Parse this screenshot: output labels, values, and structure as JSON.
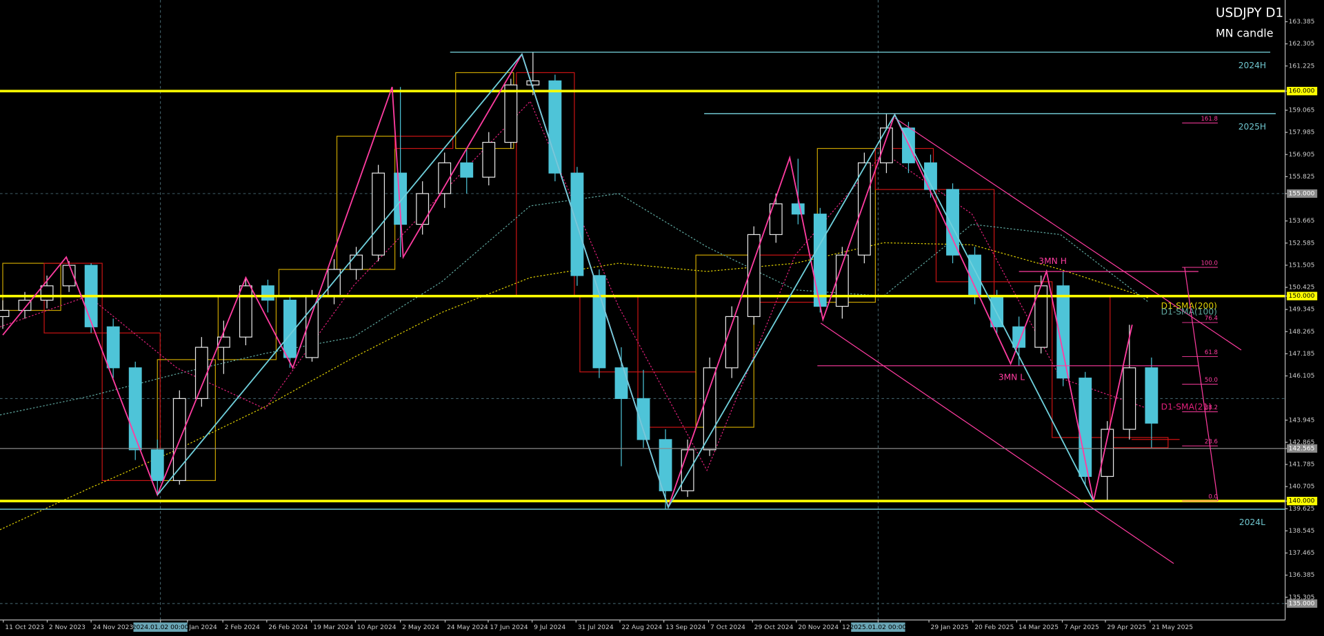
{
  "chart_data": {
    "type": "candlestick",
    "title": "USDJPY D1",
    "subtitle": "MN candle",
    "xlim": [
      0,
      465.4
    ],
    "ylim": [
      134.198,
      164.444
    ],
    "xticks": [
      {
        "value": 1.2,
        "label": "11 Oct 2023"
      },
      {
        "value": 17.1,
        "label": "2 Nov 2023"
      },
      {
        "value": 33,
        "label": "24 Nov 2023"
      },
      {
        "value": 58.1,
        "label": "2024.01.02 00:00",
        "highlight": true
      },
      {
        "value": 67.9,
        "label": "Jan 2024"
      },
      {
        "value": 80.7,
        "label": "2 Feb 2024"
      },
      {
        "value": 96.6,
        "label": "26 Feb 2024"
      },
      {
        "value": 112.8,
        "label": "19 Mar 2024"
      },
      {
        "value": 128.7,
        "label": "10 Apr 2024"
      },
      {
        "value": 145,
        "label": "2 May 2024"
      },
      {
        "value": 161.2,
        "label": "24 May 2024"
      },
      {
        "value": 176.8,
        "label": "17 Jun 2024"
      },
      {
        "value": 192.7,
        "label": "9 Jul 2024"
      },
      {
        "value": 208.6,
        "label": "31 Jul 2024"
      },
      {
        "value": 224.5,
        "label": "22 Aug 2024"
      },
      {
        "value": 240.4,
        "label": "13 Sep 2024"
      },
      {
        "value": 256.6,
        "label": "7 Oct 2024"
      },
      {
        "value": 272.5,
        "label": "29 Oct 2024"
      },
      {
        "value": 288.4,
        "label": "20 Nov 2024"
      },
      {
        "value": 304.3,
        "label": "12"
      },
      {
        "value": 318,
        "label": "2025.01.02 00:00",
        "highlight": true
      },
      {
        "value": 336.4,
        "label": "29 Jan 2025"
      },
      {
        "value": 352.3,
        "label": "20 Feb 2025"
      },
      {
        "value": 368.2,
        "label": "14 Mar 2025"
      },
      {
        "value": 384.7,
        "label": "7 Apr 2025"
      },
      {
        "value": 400.3,
        "label": "29 Apr 2025"
      },
      {
        "value": 416.5,
        "label": "21 May 2025"
      }
    ],
    "yticks": [
      163.385,
      162.305,
      161.225,
      {
        "value": 160,
        "label": "160.000",
        "highlight": "yellow"
      },
      159.065,
      157.985,
      156.905,
      155.825,
      {
        "value": 155,
        "label": "155.000",
        "highlight": "gray"
      },
      153.665,
      152.585,
      151.505,
      150.425,
      {
        "value": 150,
        "label": "150.000",
        "highlight": "yellow"
      },
      149.345,
      148.265,
      147.185,
      146.105,
      143.945,
      142.865,
      {
        "value": 142.565,
        "label": "142.565",
        "highlight": "gray"
      },
      141.785,
      140.705,
      {
        "value": 140,
        "label": "140.000",
        "highlight": "yellow"
      },
      139.625,
      138.545,
      137.465,
      136.385,
      135.305,
      {
        "value": 135,
        "label": "135.000",
        "highlight": "gray"
      }
    ],
    "grid_levels": [
      155,
      145,
      135
    ],
    "up_color": "#e8e8e8",
    "down_color": "#4ec4d8",
    "candles": {
      "x": [
        1,
        9,
        17,
        25,
        33,
        41,
        49,
        57,
        65,
        73,
        81,
        89,
        97,
        105,
        113,
        121,
        129,
        137,
        145,
        153,
        161,
        169,
        177,
        185,
        193,
        201,
        209,
        217,
        225,
        233,
        241,
        249,
        257,
        265,
        273,
        281,
        289,
        297,
        305,
        313,
        321,
        329,
        337,
        345,
        353,
        361,
        369,
        377,
        385,
        393,
        401,
        409,
        417
      ],
      "open": [
        149.0,
        149.3,
        149.8,
        150.5,
        151.5,
        148.5,
        146.5,
        142.5,
        141.0,
        145.0,
        147.5,
        148.0,
        150.5,
        149.8,
        147.0,
        150.0,
        151.3,
        152.0,
        156.0,
        153.5,
        155.0,
        156.5,
        155.8,
        157.5,
        160.3,
        160.5,
        156.0,
        151.0,
        146.5,
        145.0,
        143.0,
        140.5,
        142.5,
        146.5,
        149.0,
        153.0,
        154.5,
        154.0,
        149.5,
        152.0,
        156.5,
        158.2,
        156.5,
        155.2,
        152.0,
        150.0,
        148.5,
        147.5,
        150.5,
        146.0,
        141.2,
        143.5,
        146.5
      ],
      "high": [
        149.8,
        150.2,
        151.0,
        151.7,
        151.6,
        148.9,
        146.8,
        143.0,
        145.4,
        148.0,
        148.8,
        150.9,
        150.8,
        150.0,
        150.3,
        151.8,
        152.4,
        156.4,
        160.2,
        155.6,
        157.0,
        157.2,
        158.0,
        160.6,
        161.9,
        160.8,
        156.3,
        151.3,
        147.5,
        146.4,
        143.5,
        143.0,
        147.0,
        149.5,
        153.4,
        155.0,
        156.7,
        154.3,
        152.4,
        157.0,
        158.9,
        158.5,
        156.9,
        155.5,
        152.4,
        150.3,
        149.0,
        151.0,
        151.2,
        146.3,
        143.9,
        148.6,
        147.0
      ],
      "low": [
        148.4,
        148.9,
        149.4,
        150.2,
        148.2,
        146.0,
        142.0,
        140.4,
        140.8,
        144.6,
        146.2,
        147.6,
        149.2,
        146.5,
        146.8,
        149.6,
        150.8,
        151.7,
        151.9,
        153.0,
        154.3,
        155.0,
        155.4,
        157.2,
        159.8,
        155.6,
        150.5,
        146.0,
        141.7,
        142.6,
        139.6,
        140.2,
        142.2,
        146.0,
        148.6,
        152.6,
        153.5,
        149.2,
        148.9,
        151.6,
        156.0,
        156.0,
        154.8,
        151.6,
        149.6,
        148.1,
        146.6,
        147.2,
        145.6,
        140.8,
        140.0,
        143.0,
        142.6
      ],
      "close": [
        149.3,
        149.8,
        150.5,
        151.5,
        148.5,
        146.5,
        142.5,
        141.0,
        145.0,
        147.5,
        148.0,
        150.5,
        149.8,
        147.0,
        150.0,
        151.3,
        152.0,
        156.0,
        153.5,
        155.0,
        156.5,
        155.8,
        157.5,
        160.3,
        160.5,
        156.0,
        151.0,
        146.5,
        145.0,
        143.0,
        140.5,
        142.5,
        146.5,
        149.0,
        153.0,
        154.5,
        154.0,
        149.5,
        152.0,
        156.5,
        158.2,
        156.5,
        155.2,
        152.0,
        150.0,
        148.5,
        147.5,
        150.5,
        146.0,
        141.2,
        143.5,
        146.5,
        143.8
      ]
    },
    "monthly": {
      "up_color": "#c8a200",
      "down_color": "#c81414",
      "x": [
        1,
        16,
        37,
        57,
        79,
        101,
        122,
        143,
        165,
        187,
        210,
        231,
        252,
        274,
        296,
        317,
        339,
        360,
        381,
        402
      ],
      "open": [
        149.3,
        151.6,
        148.2,
        141.0,
        146.9,
        150.0,
        151.3,
        157.8,
        157.2,
        160.9,
        150.0,
        146.3,
        143.6,
        152.0,
        149.7,
        157.2,
        155.2,
        150.7,
        150.0,
        143.1
      ],
      "close": [
        151.6,
        148.2,
        141.0,
        146.9,
        150.0,
        151.3,
        157.8,
        157.2,
        160.9,
        150.0,
        146.3,
        143.6,
        152.0,
        149.7,
        157.2,
        155.2,
        150.7,
        150.0,
        143.1,
        142.6
      ]
    },
    "levels": [
      {
        "value": 160,
        "color": "#ffff00"
      },
      {
        "value": 150,
        "color": "#ffff00"
      },
      {
        "value": 140,
        "color": "#ffff00"
      }
    ],
    "ranges": [
      {
        "label": "2024H",
        "value": 161.9,
        "x": [
          163,
          460
        ],
        "color": "#6fc6cf"
      },
      {
        "label": "2025H",
        "value": 158.9,
        "x": [
          255,
          462
        ],
        "color": "#6fc6cf"
      },
      {
        "label": "2024L",
        "value": 139.6,
        "x": [
          0,
          465.4
        ],
        "color": "#6fc6cf"
      }
    ],
    "current_price": 142.565,
    "sma": {
      "x": [
        0,
        32,
        64,
        96,
        128,
        160,
        192,
        224,
        256,
        288,
        320,
        352,
        384,
        416
      ],
      "series": [
        {
          "name": "D1-SMA(200)",
          "color": "#e0d000",
          "values": [
            138.6,
            140.6,
            142.5,
            144.6,
            147.0,
            149.2,
            150.9,
            151.6,
            151.2,
            151.6,
            152.6,
            152.5,
            151.3,
            149.9
          ]
        },
        {
          "name": "D1-SMA(100)",
          "color": "#5fa8a0",
          "values": [
            144.2,
            145.1,
            146.2,
            147.2,
            148.0,
            150.7,
            154.4,
            155.0,
            152.4,
            150.3,
            150.0,
            153.5,
            153.0,
            149.7
          ]
        },
        {
          "name": "D1-SMA(21)",
          "color": "#e0207a",
          "values": [
            148.5,
            150.0,
            146.5,
            144.5,
            150.5,
            155.0,
            159.5,
            149.5,
            141.5,
            152.0,
            157.0,
            154.0,
            146.0,
            144.5
          ]
        }
      ]
    },
    "zigzag": {
      "color": "#ff3ca0",
      "x": [
        1,
        24,
        57,
        89,
        106,
        142,
        146,
        189,
        242,
        286,
        298,
        324,
        366,
        379,
        396,
        410
      ],
      "values": [
        148.1,
        151.9,
        140.3,
        150.9,
        146.5,
        160.2,
        151.9,
        161.8,
        139.7,
        156.75,
        148.85,
        158.85,
        146.7,
        151.2,
        140.0,
        148.6
      ]
    },
    "swings": {
      "color": "#6fd0dc",
      "x": [
        57,
        189,
        242,
        324,
        396
      ],
      "values": [
        140.3,
        161.8,
        139.7,
        158.85,
        140.0
      ]
    },
    "marks": [
      {
        "label": "3MN H",
        "value": 151.2,
        "x": [
          369,
          434
        ],
        "color": "#ff3ca0"
      },
      {
        "label": "3MN L",
        "value": 146.6,
        "x": [
          296,
          434
        ],
        "color": "#ff3ca0"
      }
    ],
    "fib": {
      "color": "#ff3ca0",
      "high": 151.4,
      "low": 140.0,
      "x": [
        429,
        441
      ],
      "levels": [
        161.8,
        {
          "value": 100,
          "label": "100.0"
        },
        76.4,
        61.8,
        {
          "value": 50,
          "label": "50.0"
        },
        38.2,
        23.6,
        {
          "value": 0,
          "label": "0.0"
        }
      ]
    }
  }
}
